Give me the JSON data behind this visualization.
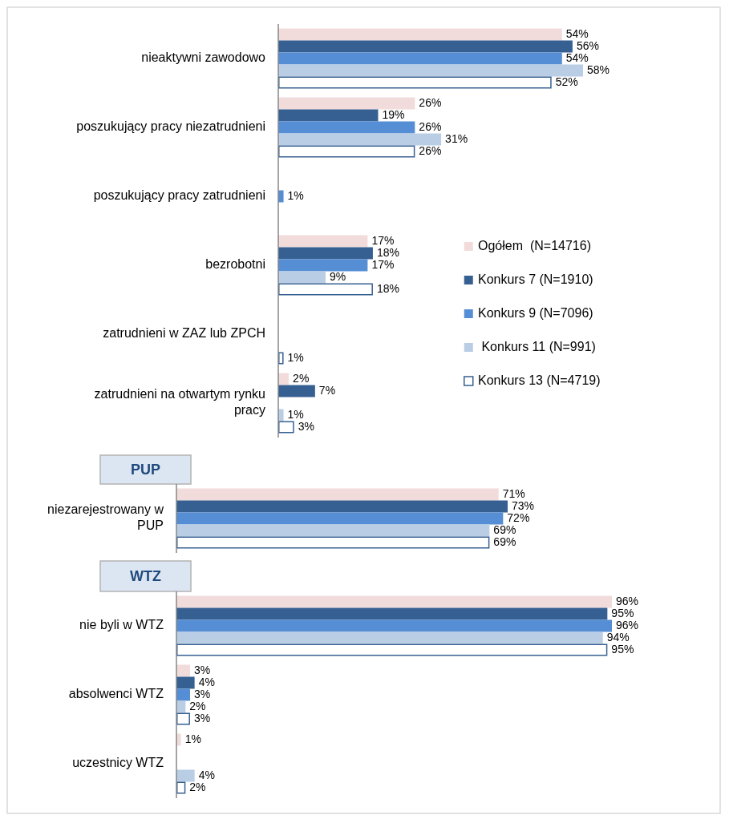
{
  "chart_data": [
    {
      "type": "bar",
      "orientation": "horizontal",
      "legend": "right",
      "categories": [
        "nieaktywni zawodowo",
        "poszukujący pracy niezatrudnieni",
        "poszukujący pracy zatrudnieni",
        "bezrobotni",
        "zatrudnieni w ZAZ lub ZPCH",
        "zatrudnieni na otwartym rynku pracy"
      ],
      "series": [
        {
          "name": "Ogółem  (N=14716)",
          "color": "#f2dcdb",
          "values": [
            54,
            26,
            null,
            17,
            null,
            2
          ],
          "value_labels": [
            "54%",
            "26%",
            null,
            "17%",
            null,
            "2%"
          ]
        },
        {
          "name": "Konkurs 7 (N=1910)",
          "color": "#376092",
          "values": [
            56,
            19,
            null,
            18,
            null,
            7
          ],
          "value_labels": [
            "56%",
            "19%",
            null,
            "18%",
            null,
            "7%"
          ]
        },
        {
          "name": "Konkurs 9 (N=7096)",
          "color": "#558ed5",
          "values": [
            54,
            26,
            1,
            17,
            null,
            null
          ],
          "value_labels": [
            "54%",
            "26%",
            "1%",
            "17%",
            null,
            null
          ]
        },
        {
          "name": " Konkurs 11 (N=991)",
          "color": "#b9cde5",
          "values": [
            58,
            31,
            null,
            9,
            null,
            1
          ],
          "value_labels": [
            "58%",
            "31%",
            null,
            "9%",
            null,
            "1%"
          ]
        },
        {
          "name": "Konkurs 13 (N=4719)",
          "color": "#ffffff",
          "values": [
            52,
            26,
            null,
            18,
            1,
            3
          ],
          "value_labels": [
            "52%",
            "26%",
            null,
            "18%",
            "1%",
            "3%"
          ]
        }
      ]
    },
    {
      "type": "bar",
      "orientation": "horizontal",
      "title": "PUP",
      "categories": [
        "niezarejestrowany w PUP"
      ],
      "series": [
        {
          "color": "#f2dcdb",
          "values": [
            71
          ],
          "value_labels": [
            "71%"
          ]
        },
        {
          "color": "#376092",
          "values": [
            73
          ],
          "value_labels": [
            "73%"
          ]
        },
        {
          "color": "#558ed5",
          "values": [
            72
          ],
          "value_labels": [
            "72%"
          ]
        },
        {
          "color": "#b9cde5",
          "values": [
            69
          ],
          "value_labels": [
            "69%"
          ]
        },
        {
          "color": "#ffffff",
          "values": [
            69
          ],
          "value_labels": [
            "69%"
          ]
        }
      ]
    },
    {
      "type": "bar",
      "orientation": "horizontal",
      "title": "WTZ",
      "categories": [
        "nie byli w WTZ",
        "absolwenci WTZ",
        "uczestnicy WTZ"
      ],
      "series": [
        {
          "color": "#f2dcdb",
          "values": [
            96,
            3,
            1
          ],
          "value_labels": [
            "96%",
            "3%",
            "1%"
          ]
        },
        {
          "color": "#376092",
          "values": [
            95,
            4,
            null
          ],
          "value_labels": [
            "95%",
            "4%",
            null
          ]
        },
        {
          "color": "#558ed5",
          "values": [
            96,
            3,
            null
          ],
          "value_labels": [
            "96%",
            "3%",
            null
          ]
        },
        {
          "color": "#b9cde5",
          "values": [
            94,
            2,
            4
          ],
          "value_labels": [
            "94%",
            "2%",
            "4%"
          ]
        },
        {
          "color": "#ffffff",
          "values": [
            95,
            3,
            2
          ],
          "value_labels": [
            "95%",
            "3%",
            "2%"
          ]
        }
      ]
    }
  ]
}
